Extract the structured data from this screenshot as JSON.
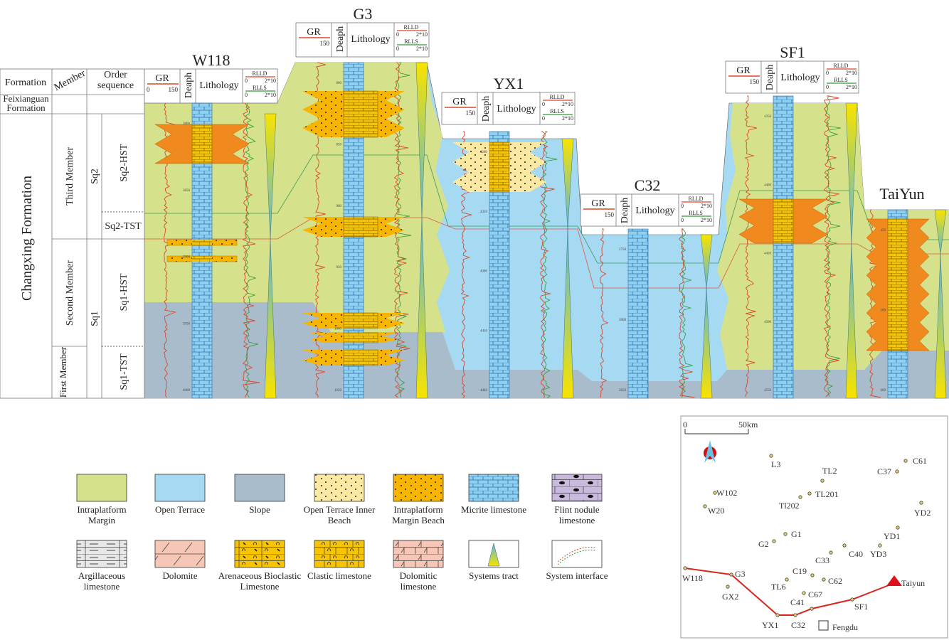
{
  "stratigraphy_table": {
    "headers": {
      "formation": "Formation",
      "member": "Member",
      "order_sequence": "Order sequence"
    },
    "feixianguan": "Feixianguan Formation",
    "changxing": "Changxing Formation",
    "members": [
      "Third Member",
      "Second Member",
      "First Member"
    ],
    "sequences": [
      "Sq2",
      "Sq1"
    ],
    "systems_tracts": [
      "Sq2-HST",
      "Sq2-TST",
      "Sq1-HST",
      "Sq1-TST"
    ]
  },
  "log_header": {
    "gr": "GR",
    "gr_min": "0",
    "gr_max": "150",
    "depth": "Deaph",
    "lithology": "Lithology",
    "rlld": "RLLD",
    "rlls": "RLLS",
    "res_min": "0",
    "res_max": "2*10"
  },
  "wells": [
    {
      "name": "W118",
      "depths": [
        "3800",
        "3850",
        "3900",
        "3950",
        "4000"
      ]
    },
    {
      "name": "G3",
      "depths": [
        "800",
        "850",
        "900",
        "950",
        "1000",
        "1050"
      ]
    },
    {
      "name": "YX1",
      "depths": [
        "4280",
        "4310",
        "4380",
        "4410",
        "4440"
      ]
    },
    {
      "name": "C32",
      "depths": [
        "2750",
        "2800",
        "2850"
      ]
    },
    {
      "name": "SF1",
      "depths": [
        "4350",
        "4400",
        "4450",
        "4500",
        "4550"
      ]
    },
    {
      "name": "TaiYun",
      "depths": [
        "450",
        "500",
        "600"
      ]
    }
  ],
  "colors": {
    "intraplatform_margin": "#d5e28b",
    "open_terrace": "#a6d9f2",
    "slope": "#a9bccb",
    "beach_orange": "#f08a1e",
    "beach_yellow": "#f7c500",
    "gr_curve": "#d9472b",
    "rlls_curve": "#2e9a3a"
  },
  "legend": [
    {
      "label": "Intraplatform Margin",
      "pattern": "intraplatform-margin"
    },
    {
      "label": "Open Terrace",
      "pattern": "open-terrace"
    },
    {
      "label": "Slope",
      "pattern": "slope"
    },
    {
      "label": "Open Terrace Inner Beach",
      "pattern": "open-terrace-inner-beach"
    },
    {
      "label": "Intraplatform Margin Beach",
      "pattern": "intraplatform-margin-beach"
    },
    {
      "label": "Micrite limestone",
      "pattern": "micrite-limestone"
    },
    {
      "label": "Flint nodule limestone",
      "pattern": "flint-nodule-limestone"
    },
    {
      "label": "Argillaceous limestone",
      "pattern": "argillaceous-limestone"
    },
    {
      "label": "Dolomite",
      "pattern": "dolomite"
    },
    {
      "label": "Arenaceous Bioclastic Limestone",
      "pattern": "arenaceous-bioclastic-limestone"
    },
    {
      "label": "Clastic limestone",
      "pattern": "clastic-limestone"
    },
    {
      "label": "Dolomitic limestone",
      "pattern": "dolomitic-limestone"
    },
    {
      "label": "Systems tract",
      "pattern": "systems-tract"
    },
    {
      "label": "System interface",
      "pattern": "system-interface"
    }
  ],
  "map": {
    "scale_zero": "0",
    "scale_label": "50km",
    "wells": [
      "L3",
      "TL2",
      "C61",
      "C37",
      "W102",
      "W20",
      "Tl202",
      "TL201",
      "YD2",
      "YD1",
      "G1",
      "G2",
      "C33",
      "C40",
      "YD3",
      "W118",
      "G3",
      "GX2",
      "TL6",
      "C19",
      "C62",
      "C67",
      "C41",
      "SF1",
      "YX1",
      "C32"
    ],
    "target": "Taiyun",
    "city": "Fengdu"
  }
}
